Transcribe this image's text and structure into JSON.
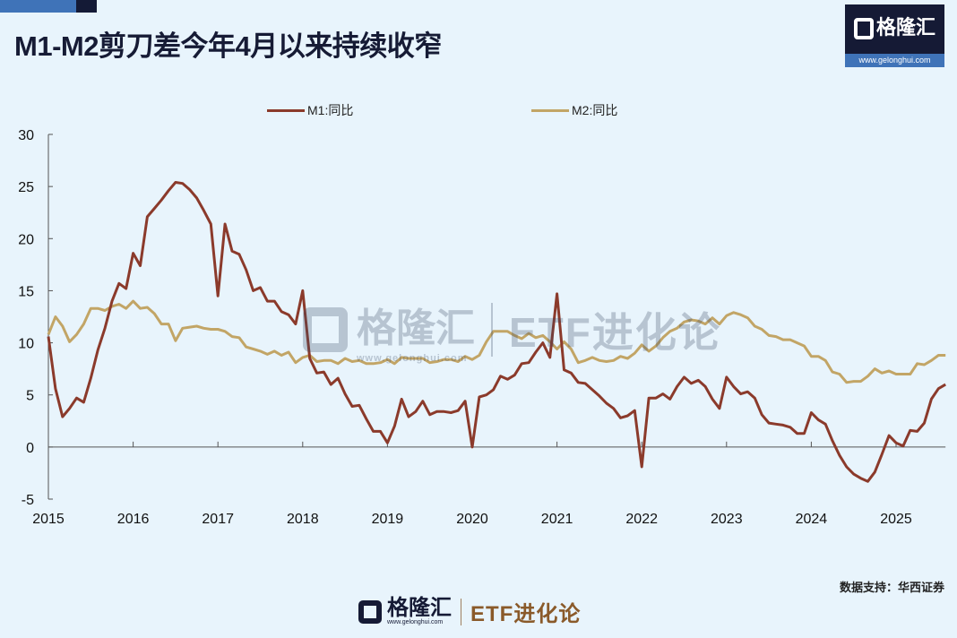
{
  "title": "M1-M2剪刀差今年4月以来持续收窄",
  "logo": {
    "brand": "格隆汇",
    "url": "www.gelonghui.com"
  },
  "watermark": {
    "brand": "格隆汇",
    "url": "www.gelonghui.com",
    "column": "ETF进化论"
  },
  "source": "数据支持：华西证券",
  "footer": {
    "brand": "格隆汇",
    "url": "www.gelonghui.com",
    "column": "ETF进化论"
  },
  "colors": {
    "background": "#e8f4fc",
    "m1": "#8b3a2b",
    "m2": "#c2a566",
    "title": "#161b35"
  },
  "chart_data": {
    "type": "line",
    "title": "",
    "xlabel": "",
    "ylabel": "",
    "ylim": [
      -5,
      30
    ],
    "yticks": [
      "30",
      "25",
      "20",
      "15",
      "10",
      "5",
      "0",
      "-5"
    ],
    "xticks": [
      "2015",
      "2016",
      "2017",
      "2018",
      "2019",
      "2020",
      "2021",
      "2022",
      "2023",
      "2024",
      "2025"
    ],
    "x_start": "2015-01",
    "x_frequency": "monthly",
    "legend_position": "top",
    "grid": false,
    "series": [
      {
        "name": "M1:同比",
        "color": "#8b3a2b",
        "values": [
          10.6,
          5.6,
          2.9,
          3.7,
          4.7,
          4.3,
          6.6,
          9.3,
          11.4,
          14.0,
          15.7,
          15.2,
          18.6,
          17.4,
          22.1,
          22.9,
          23.7,
          24.6,
          25.4,
          25.3,
          24.7,
          23.9,
          22.7,
          21.4,
          14.5,
          21.4,
          18.8,
          18.5,
          17.0,
          15.0,
          15.3,
          14.0,
          14.0,
          13.0,
          12.7,
          11.8,
          15.0,
          8.5,
          7.1,
          7.2,
          6.0,
          6.6,
          5.1,
          3.9,
          4.0,
          2.7,
          1.5,
          1.5,
          0.4,
          2.0,
          4.6,
          2.9,
          3.4,
          4.4,
          3.1,
          3.4,
          3.4,
          3.3,
          3.5,
          4.4,
          0.0,
          4.8,
          5.0,
          5.5,
          6.8,
          6.5,
          6.9,
          8.0,
          8.1,
          9.1,
          10.0,
          8.6,
          14.7,
          7.4,
          7.1,
          6.2,
          6.1,
          5.5,
          4.9,
          4.2,
          3.7,
          2.8,
          3.0,
          3.5,
          -1.9,
          4.7,
          4.7,
          5.1,
          4.6,
          5.8,
          6.7,
          6.1,
          6.4,
          5.8,
          4.6,
          3.7,
          6.7,
          5.8,
          5.1,
          5.3,
          4.7,
          3.1,
          2.3,
          2.2,
          2.1,
          1.9,
          1.3,
          1.3,
          3.3,
          2.6,
          2.2,
          0.6,
          -0.8,
          -1.9,
          -2.6,
          -3.0,
          -3.3,
          -2.4,
          -0.7,
          1.1,
          0.4,
          0.1,
          1.6,
          1.5,
          2.3,
          4.6,
          5.6,
          6.0
        ]
      },
      {
        "name": "M2:同比",
        "color": "#c2a566",
        "values": [
          10.8,
          12.5,
          11.6,
          10.1,
          10.8,
          11.8,
          13.3,
          13.3,
          13.1,
          13.5,
          13.7,
          13.3,
          14.0,
          13.3,
          13.4,
          12.8,
          11.8,
          11.8,
          10.2,
          11.4,
          11.5,
          11.6,
          11.4,
          11.3,
          11.3,
          11.1,
          10.6,
          10.5,
          9.6,
          9.4,
          9.2,
          8.9,
          9.2,
          8.8,
          9.1,
          8.1,
          8.6,
          8.8,
          8.2,
          8.3,
          8.3,
          8.0,
          8.5,
          8.2,
          8.3,
          8.0,
          8.0,
          8.1,
          8.4,
          8.0,
          8.6,
          8.5,
          8.5,
          8.5,
          8.1,
          8.2,
          8.4,
          8.4,
          8.2,
          8.7,
          8.4,
          8.8,
          10.1,
          11.1,
          11.1,
          11.1,
          10.7,
          10.4,
          10.9,
          10.5,
          10.7,
          10.1,
          9.4,
          10.1,
          9.4,
          8.1,
          8.3,
          8.6,
          8.3,
          8.2,
          8.3,
          8.7,
          8.5,
          9.0,
          9.8,
          9.2,
          9.7,
          10.5,
          11.1,
          11.4,
          12.0,
          12.2,
          12.1,
          11.8,
          12.4,
          11.8,
          12.6,
          12.9,
          12.7,
          12.4,
          11.6,
          11.3,
          10.7,
          10.6,
          10.3,
          10.3,
          10.0,
          9.7,
          8.7,
          8.7,
          8.3,
          7.2,
          7.0,
          6.2,
          6.3,
          6.3,
          6.8,
          7.5,
          7.1,
          7.3,
          7.0,
          7.0,
          7.0,
          8.0,
          7.9,
          8.3,
          8.8,
          8.8
        ]
      }
    ]
  }
}
